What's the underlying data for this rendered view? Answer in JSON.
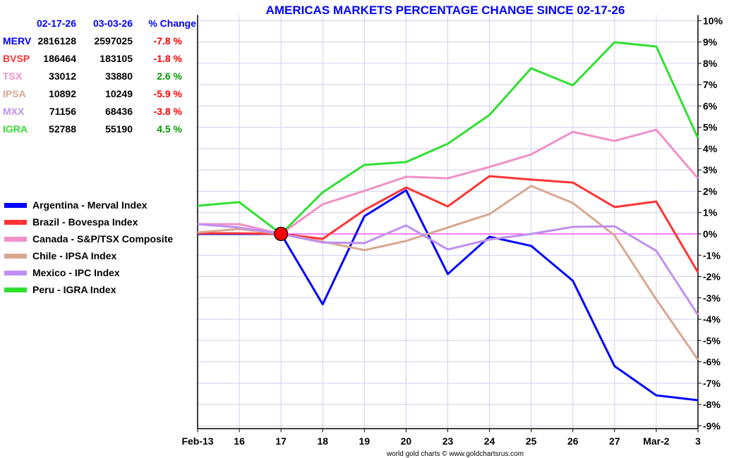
{
  "chart_data": {
    "type": "line",
    "title": "AMERICAS MARKETS PERCENTAGE CHANGE SINCE 02-17-26",
    "footer": "world gold charts © www.goldchartsrus.com",
    "categories": [
      "Feb-13",
      "16",
      "17",
      "18",
      "19",
      "20",
      "23",
      "24",
      "25",
      "26",
      "27",
      "Mar-2",
      "3"
    ],
    "ylim": [
      -9,
      10
    ],
    "y_ticks": [
      "10%",
      "9%",
      "8%",
      "7%",
      "6%",
      "5%",
      "4%",
      "3%",
      "2%",
      "1%",
      "0%",
      "-1%",
      "-2%",
      "-3%",
      "-4%",
      "-5%",
      "-6%",
      "-7%",
      "-8%",
      "-9%"
    ],
    "grid": true,
    "base_marker": {
      "category": "17",
      "value": 0,
      "color": "#ff0000"
    },
    "zero_line_color": "#ff00ff",
    "series": [
      {
        "name": "Argentina - Merval Index",
        "color": "#0000ff",
        "values": [
          0,
          0,
          0,
          -3.3,
          0.83,
          2.05,
          -1.88,
          -0.13,
          -0.56,
          -2.2,
          -6.2,
          -7.57,
          -7.8
        ]
      },
      {
        "name": "Brazil - Bovespa Index",
        "color": "#ff3333",
        "values": [
          0.03,
          0.03,
          0,
          -0.23,
          1.12,
          2.18,
          1.29,
          2.71,
          2.55,
          2.41,
          1.26,
          1.52,
          -1.8
        ]
      },
      {
        "name": "Canada - S&P/TSX Composite",
        "color": "#f090c8",
        "values": [
          0.46,
          0.46,
          0,
          1.39,
          2.02,
          2.68,
          2.61,
          3.14,
          3.73,
          4.79,
          4.36,
          4.89,
          2.6
        ]
      },
      {
        "name": "Chile - IPSA Index",
        "color": "#d8a890",
        "values": [
          0.07,
          0.23,
          0,
          -0.36,
          -0.76,
          -0.33,
          0.3,
          0.93,
          2.25,
          1.45,
          -0.07,
          -3.07,
          -5.9
        ]
      },
      {
        "name": "Mexico - IPC Index",
        "color": "#c090f0",
        "values": [
          0.46,
          0.3,
          0,
          -0.4,
          -0.43,
          0.4,
          -0.73,
          -0.26,
          0,
          0.33,
          0.36,
          -0.79,
          -3.8
        ]
      },
      {
        "name": "Peru - IGRA Index",
        "color": "#30e030",
        "values": [
          1.32,
          1.49,
          0,
          1.95,
          3.24,
          3.37,
          4.23,
          5.58,
          7.77,
          6.97,
          8.99,
          8.79,
          4.5
        ]
      }
    ],
    "table": {
      "headers": [
        "02-17-26",
        "03-03-26",
        "% Change"
      ],
      "rows": [
        {
          "code": "MERV",
          "color": "#0000ff",
          "start": "2816128",
          "end": "2597025",
          "change": "-7.8 %",
          "change_color": "#ff0000"
        },
        {
          "code": "BVSP",
          "color": "#ff3333",
          "start": "186464",
          "end": "183105",
          "change": "-1.8 %",
          "change_color": "#ff0000"
        },
        {
          "code": "TSX",
          "color": "#f090c8",
          "start": "33012",
          "end": "33880",
          "change": "2.6 %",
          "change_color": "#009900"
        },
        {
          "code": "IPSA",
          "color": "#d8a890",
          "start": "10892",
          "end": "10249",
          "change": "-5.9 %",
          "change_color": "#ff0000"
        },
        {
          "code": "MXX",
          "color": "#c090f0",
          "start": "71156",
          "end": "68436",
          "change": "-3.8 %",
          "change_color": "#ff0000"
        },
        {
          "code": "IGRA",
          "color": "#30e030",
          "start": "52788",
          "end": "55190",
          "change": "4.5 %",
          "change_color": "#009900"
        }
      ]
    }
  }
}
